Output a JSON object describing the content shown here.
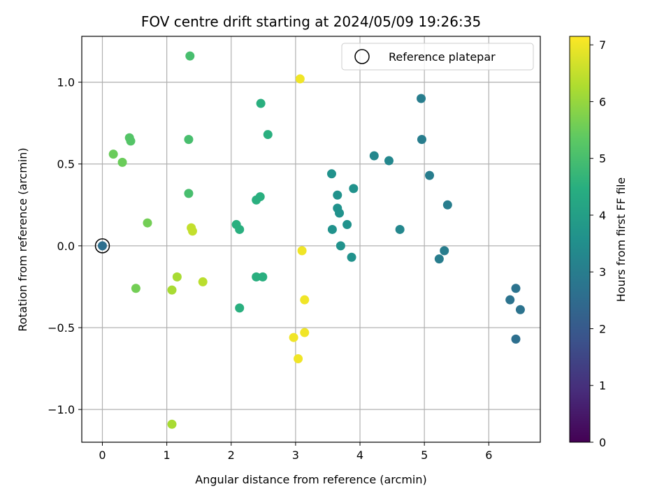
{
  "chart_data": {
    "type": "scatter",
    "title": "FOV centre drift starting at 2024/05/09 19:26:35",
    "xlabel": "Angular distance from reference (arcmin)",
    "ylabel": "Rotation from reference (arcmin)",
    "colorbar_label": "Hours from first FF file",
    "xlim": [
      -0.32,
      6.8
    ],
    "ylim": [
      -1.2,
      1.28
    ],
    "xticks": [
      0,
      1,
      2,
      3,
      4,
      5,
      6
    ],
    "xtick_labels": [
      "0",
      "1",
      "2",
      "3",
      "4",
      "5",
      "6"
    ],
    "yticks": [
      -1.0,
      -0.5,
      0.0,
      0.5,
      1.0
    ],
    "ytick_labels": [
      "−1.0",
      "−0.5",
      "0.0",
      "0.5",
      "1.0"
    ],
    "colorbar_range": [
      0,
      7.15
    ],
    "colorbar_ticks": [
      0,
      1,
      2,
      3,
      4,
      5,
      6,
      7
    ],
    "colorbar_tick_labels": [
      "0",
      "1",
      "2",
      "3",
      "4",
      "5",
      "6",
      "7"
    ],
    "colormap": "viridis",
    "grid": true,
    "legend_position": "top-right",
    "legend_entries": [
      "Reference platepar"
    ],
    "reference_point": {
      "x": 0.0,
      "y": 0.0
    },
    "points": [
      {
        "x": 0.0,
        "y": 0.0,
        "c": 2.6
      },
      {
        "x": 4.95,
        "y": 0.9,
        "c": 3.0
      },
      {
        "x": 4.96,
        "y": 0.65,
        "c": 3.0
      },
      {
        "x": 5.08,
        "y": 0.43,
        "c": 3.0
      },
      {
        "x": 5.36,
        "y": 0.25,
        "c": 3.0
      },
      {
        "x": 5.31,
        "y": -0.03,
        "c": 3.0
      },
      {
        "x": 5.23,
        "y": -0.08,
        "c": 3.0
      },
      {
        "x": 6.42,
        "y": -0.26,
        "c": 2.7
      },
      {
        "x": 6.33,
        "y": -0.33,
        "c": 2.7
      },
      {
        "x": 6.49,
        "y": -0.39,
        "c": 2.7
      },
      {
        "x": 6.42,
        "y": -0.57,
        "c": 2.6
      },
      {
        "x": 4.22,
        "y": 0.55,
        "c": 3.3
      },
      {
        "x": 4.45,
        "y": 0.52,
        "c": 3.3
      },
      {
        "x": 4.62,
        "y": 0.1,
        "c": 3.3
      },
      {
        "x": 3.56,
        "y": 0.44,
        "c": 3.6
      },
      {
        "x": 3.65,
        "y": 0.31,
        "c": 3.6
      },
      {
        "x": 3.9,
        "y": 0.35,
        "c": 3.6
      },
      {
        "x": 3.65,
        "y": 0.23,
        "c": 3.6
      },
      {
        "x": 3.68,
        "y": 0.2,
        "c": 3.6
      },
      {
        "x": 3.8,
        "y": 0.13,
        "c": 3.6
      },
      {
        "x": 3.57,
        "y": 0.1,
        "c": 3.6
      },
      {
        "x": 3.7,
        "y": 0.0,
        "c": 3.6
      },
      {
        "x": 3.87,
        "y": -0.07,
        "c": 3.6
      },
      {
        "x": 2.46,
        "y": 0.87,
        "c": 4.5
      },
      {
        "x": 2.57,
        "y": 0.68,
        "c": 4.5
      },
      {
        "x": 2.39,
        "y": 0.28,
        "c": 4.5
      },
      {
        "x": 2.45,
        "y": 0.3,
        "c": 4.5
      },
      {
        "x": 2.08,
        "y": 0.13,
        "c": 4.5
      },
      {
        "x": 2.13,
        "y": 0.1,
        "c": 4.5
      },
      {
        "x": 2.39,
        "y": -0.19,
        "c": 4.5
      },
      {
        "x": 2.49,
        "y": -0.19,
        "c": 4.5
      },
      {
        "x": 2.13,
        "y": -0.38,
        "c": 4.5
      },
      {
        "x": 1.36,
        "y": 1.16,
        "c": 5.0
      },
      {
        "x": 1.34,
        "y": 0.65,
        "c": 5.0
      },
      {
        "x": 1.34,
        "y": 0.32,
        "c": 5.0
      },
      {
        "x": 0.42,
        "y": 0.66,
        "c": 5.2
      },
      {
        "x": 0.44,
        "y": 0.64,
        "c": 5.2
      },
      {
        "x": 0.17,
        "y": 0.56,
        "c": 5.5
      },
      {
        "x": 0.31,
        "y": 0.51,
        "c": 5.5
      },
      {
        "x": 0.7,
        "y": 0.14,
        "c": 5.6
      },
      {
        "x": 0.52,
        "y": -0.26,
        "c": 5.6
      },
      {
        "x": 1.38,
        "y": 0.11,
        "c": 6.5
      },
      {
        "x": 1.4,
        "y": 0.09,
        "c": 6.5
      },
      {
        "x": 1.16,
        "y": -0.19,
        "c": 6.2
      },
      {
        "x": 1.56,
        "y": -0.22,
        "c": 6.4
      },
      {
        "x": 1.08,
        "y": -0.27,
        "c": 6.2
      },
      {
        "x": 1.08,
        "y": -1.09,
        "c": 6.2
      },
      {
        "x": 3.07,
        "y": 1.02,
        "c": 7.0
      },
      {
        "x": 3.1,
        "y": -0.03,
        "c": 7.0
      },
      {
        "x": 3.14,
        "y": -0.33,
        "c": 7.0
      },
      {
        "x": 3.14,
        "y": -0.53,
        "c": 7.0
      },
      {
        "x": 2.97,
        "y": -0.56,
        "c": 7.0
      },
      {
        "x": 3.04,
        "y": -0.69,
        "c": 7.0
      }
    ]
  }
}
